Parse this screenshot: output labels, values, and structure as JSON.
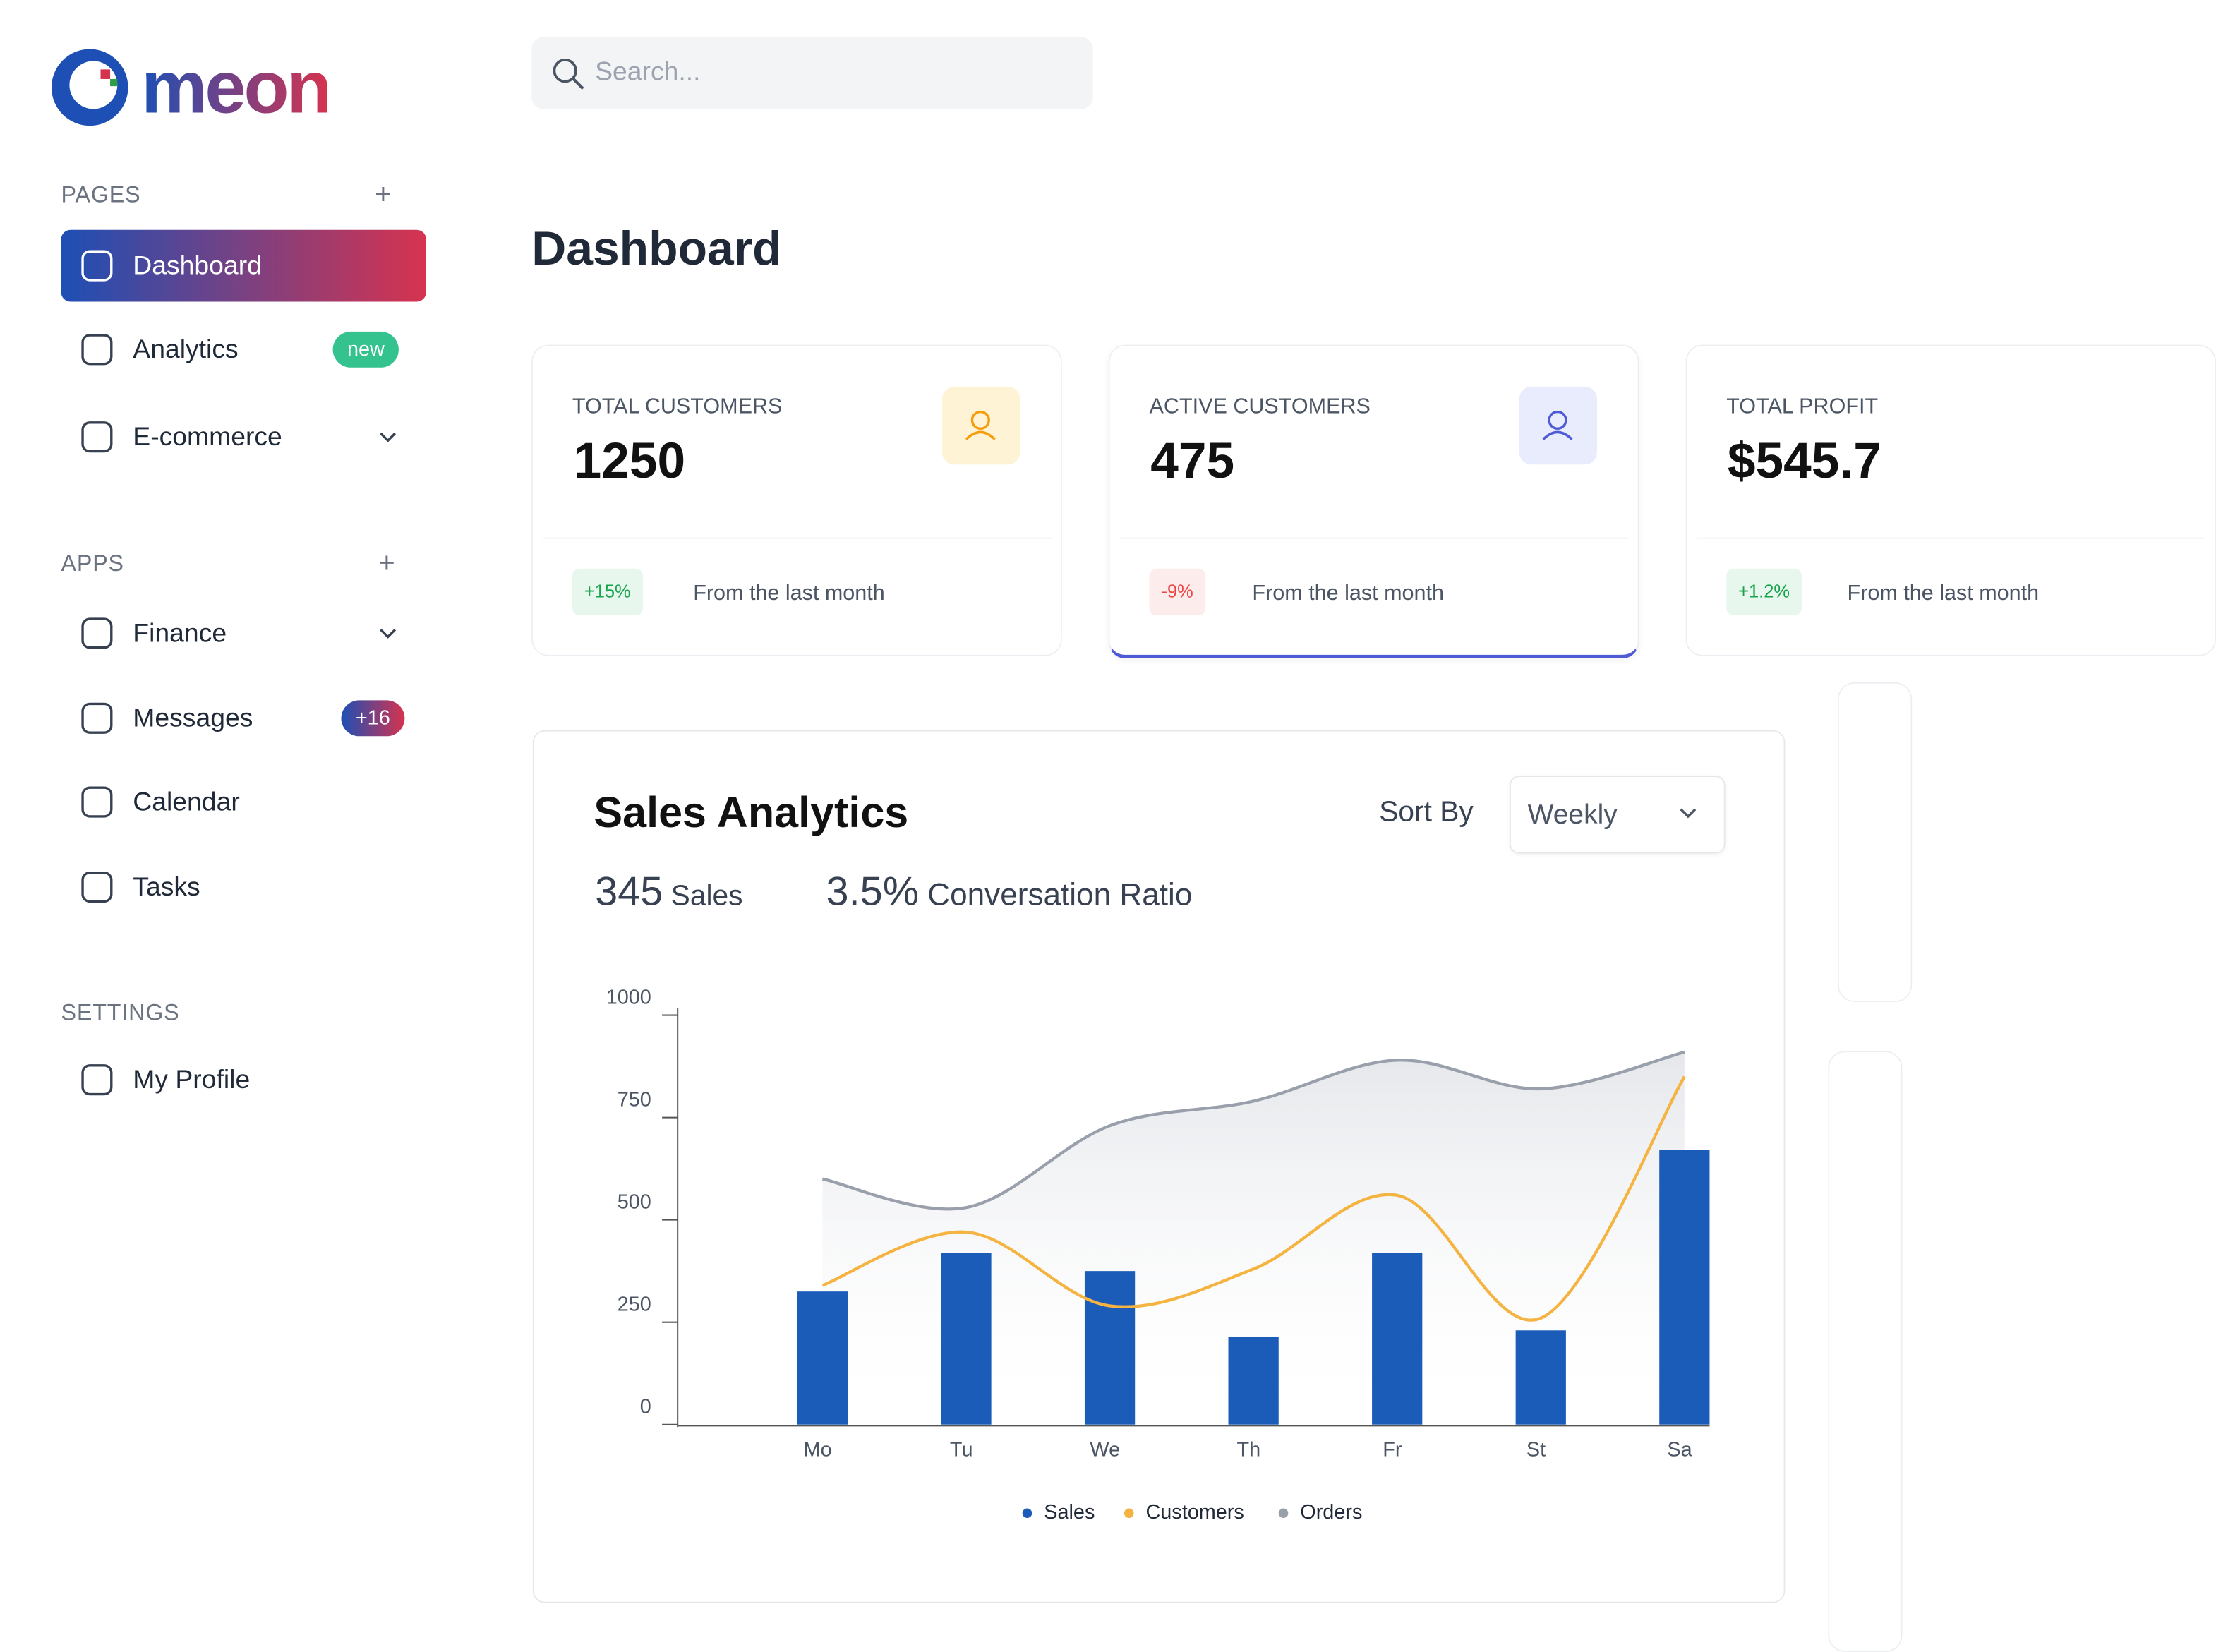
{
  "logo": "meon",
  "search": {
    "placeholder": "Search..."
  },
  "sidebar": {
    "sections": [
      {
        "title": "PAGES",
        "items": [
          {
            "label": "Dashboard"
          },
          {
            "label": "Analytics",
            "badge": "new"
          },
          {
            "label": "E-commerce"
          }
        ]
      },
      {
        "title": "APPS",
        "items": [
          {
            "label": "Finance"
          },
          {
            "label": "Messages",
            "badge": "+16"
          },
          {
            "label": "Calendar"
          },
          {
            "label": "Tasks"
          }
        ]
      },
      {
        "title": "SETTINGS",
        "items": [
          {
            "label": "My Profile"
          }
        ]
      }
    ]
  },
  "page_title": "Dashboard",
  "cards": [
    {
      "title": "TOTAL CUSTOMERS",
      "value": "1250",
      "change": "+15%",
      "note": "From the last month"
    },
    {
      "title": "ACTIVE CUSTOMERS",
      "value": "475",
      "change": "-9%",
      "note": "From the last month"
    },
    {
      "title": "TOTAL PROFIT",
      "value": "$545.7",
      "change": "+1.2%",
      "note": "From the last month"
    }
  ],
  "sales_analytics": {
    "title": "Sales Analytics",
    "sort_label": "Sort By",
    "sort_value": "Weekly",
    "stats": [
      {
        "value": "345",
        "label": "Sales"
      },
      {
        "value": "3.5%",
        "label": "Conversation Ratio"
      }
    ],
    "chart": {
      "type": "bar-line",
      "categories": [
        "Mo",
        "Tu",
        "We",
        "Th",
        "Fr",
        "St",
        "Sa"
      ],
      "ylim": [
        0,
        1000
      ],
      "yticks": [
        0,
        250,
        500,
        750,
        1000
      ],
      "series": [
        {
          "name": "Sales",
          "type": "bar",
          "color": "#1b5cb8",
          "values": [
            325,
            420,
            375,
            215,
            420,
            230,
            670
          ]
        },
        {
          "name": "Customers",
          "type": "line",
          "color": "#f5b342",
          "values": [
            340,
            470,
            290,
            380,
            560,
            260,
            850
          ]
        },
        {
          "name": "Orders",
          "type": "area",
          "color": "#9aa0ab",
          "values": [
            600,
            530,
            730,
            790,
            890,
            820,
            910
          ]
        }
      ]
    }
  }
}
